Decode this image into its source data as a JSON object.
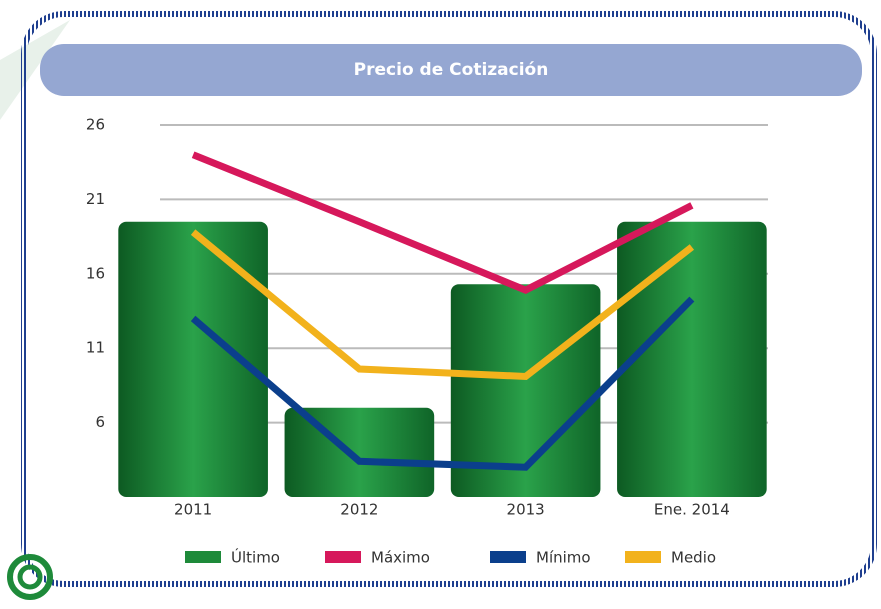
{
  "chart_data": {
    "type": "bar",
    "title": "Precio de Cotización",
    "categories": [
      "2011",
      "2012",
      "2013",
      "Ene. 2014"
    ],
    "series": [
      {
        "name": "Último",
        "type": "bar",
        "color": "#1e8a3a",
        "values": [
          19.5,
          7,
          15.3,
          19.5
        ]
      },
      {
        "name": "Máximo",
        "type": "line",
        "color": "#d6185b",
        "values": [
          24,
          19.5,
          14.9,
          20.6
        ]
      },
      {
        "name": "Mínimo",
        "type": "line",
        "color": "#0b3f8c",
        "values": [
          13,
          3.4,
          3,
          14.3
        ]
      },
      {
        "name": "Medio",
        "type": "line",
        "color": "#f2b21c",
        "values": [
          18.8,
          9.6,
          9.1,
          17.8
        ]
      }
    ],
    "ylim": [
      1,
      26
    ],
    "yticks": [
      6,
      11,
      16,
      21,
      26
    ],
    "grid": true
  }
}
